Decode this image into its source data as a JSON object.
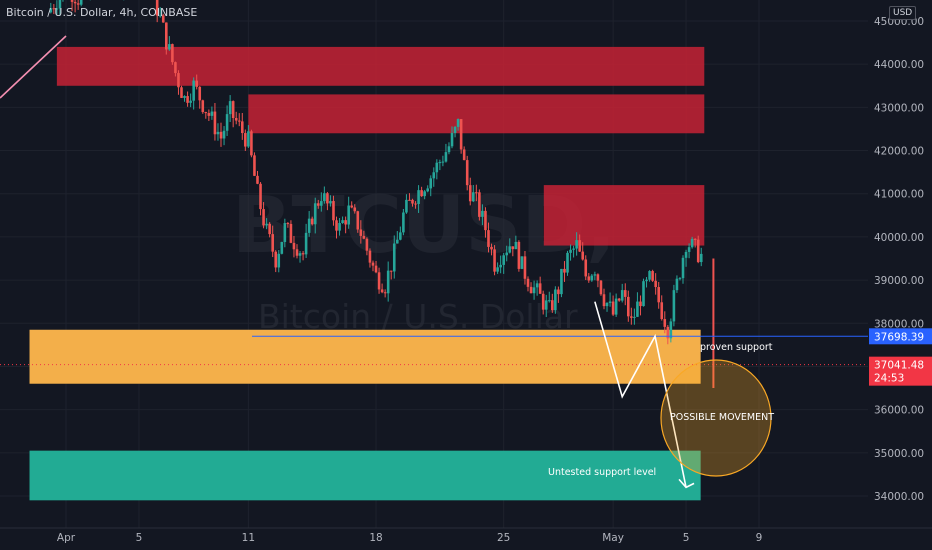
{
  "header": {
    "symbol_line": "Bitcoin / U.S. Dollar, 4h, COINBASE",
    "currency": "USD"
  },
  "watermark": {
    "ticker": "BTCUSD,",
    "name": "Bitcoin / U.S. Dollar"
  },
  "colors": {
    "background": "#131722",
    "up_candle": "#26a69a",
    "down_candle": "#ef5350",
    "resistance_zone": "#c62235",
    "support_zone": "#ffb74d",
    "untested_zone": "#22ab94",
    "blue_line": "#2962ff",
    "possible_circle": "#f9a825",
    "price_tag_red": "#f23645"
  },
  "chart_data": {
    "type": "candlestick",
    "title": "Bitcoin / U.S. Dollar, 4h, COINBASE",
    "yaxis": {
      "label": "USD",
      "range": [
        33300,
        45700
      ],
      "ticks": [
        "45000.00",
        "44000.00",
        "43000.00",
        "42000.00",
        "41000.00",
        "40000.00",
        "39000.00",
        "38000.00",
        "37000.00",
        "36000.00",
        "35000.00",
        "34000.00"
      ],
      "tick_values": [
        45000,
        44000,
        43000,
        42000,
        41000,
        40000,
        39000,
        38000,
        37000,
        36000,
        35000,
        34000
      ]
    },
    "xaxis": {
      "range_days": [
        0,
        47
      ],
      "ticks": [
        {
          "label": "Apr",
          "day": 1
        },
        {
          "label": "5",
          "day": 5
        },
        {
          "label": "11",
          "day": 11
        },
        {
          "label": "18",
          "day": 18
        },
        {
          "label": "25",
          "day": 25
        },
        {
          "label": "May",
          "day": 31
        },
        {
          "label": "5",
          "day": 35
        },
        {
          "label": "9",
          "day": 39
        }
      ]
    },
    "price_path": [
      [
        0,
        45200
      ],
      [
        1,
        45800
      ],
      [
        2,
        45400
      ],
      [
        3,
        46200
      ],
      [
        4,
        45800
      ],
      [
        5,
        46600
      ],
      [
        6,
        45300
      ],
      [
        7,
        43800
      ],
      [
        7.5,
        43200
      ],
      [
        8,
        43500
      ],
      [
        9,
        42700
      ],
      [
        9.5,
        42300
      ],
      [
        10,
        42900
      ],
      [
        11,
        42200
      ],
      [
        11.5,
        41000
      ],
      [
        12,
        40100
      ],
      [
        12.5,
        39500
      ],
      [
        13,
        40200
      ],
      [
        14,
        39600
      ],
      [
        14.5,
        40500
      ],
      [
        15,
        41000
      ],
      [
        16,
        40200
      ],
      [
        16.5,
        40600
      ],
      [
        17,
        40300
      ],
      [
        18,
        39100
      ],
      [
        18.5,
        38900
      ],
      [
        19,
        39600
      ],
      [
        19.5,
        40500
      ],
      [
        20,
        40900
      ],
      [
        21,
        41400
      ],
      [
        22,
        42100
      ],
      [
        22.5,
        42600
      ],
      [
        23,
        41200
      ],
      [
        23.5,
        40800
      ],
      [
        24,
        40200
      ],
      [
        24.5,
        39400
      ],
      [
        25,
        39700
      ],
      [
        25.5,
        39900
      ],
      [
        26,
        39300
      ],
      [
        26.5,
        38900
      ],
      [
        27,
        38600
      ],
      [
        27.5,
        38300
      ],
      [
        28,
        38800
      ],
      [
        28.5,
        39500
      ],
      [
        29,
        39800
      ],
      [
        29.5,
        39100
      ],
      [
        30,
        39300
      ],
      [
        30.5,
        38600
      ],
      [
        31,
        38200
      ],
      [
        31.5,
        38700
      ],
      [
        32,
        38000
      ],
      [
        32.5,
        38600
      ],
      [
        33,
        39000
      ],
      [
        33.5,
        38500
      ],
      [
        34,
        37900
      ],
      [
        34.5,
        38900
      ],
      [
        35,
        39900
      ],
      [
        35.5,
        39700
      ],
      [
        36,
        39500
      ]
    ],
    "current_candle_drop": [
      36,
      39500,
      36500
    ],
    "zones": [
      {
        "name": "resistance-1",
        "from_day": 0.5,
        "to_day": 36,
        "low": 43500,
        "high": 44400
      },
      {
        "name": "resistance-2",
        "from_day": 11,
        "to_day": 36,
        "low": 42400,
        "high": 43300
      },
      {
        "name": "resistance-3",
        "from_day": 27.2,
        "to_day": 36,
        "low": 39800,
        "high": 41200
      },
      {
        "name": "proven-support",
        "from_day": -1,
        "to_day": 35.8,
        "low": 36600,
        "high": 37850
      },
      {
        "name": "untested-support",
        "from_day": -1,
        "to_day": 35.8,
        "low": 33900,
        "high": 35050
      }
    ],
    "projection_path": [
      [
        30,
        38500
      ],
      [
        31.5,
        36300
      ],
      [
        33.3,
        37700
      ],
      [
        35,
        34200
      ]
    ],
    "support_line_price": 37698.39,
    "current_price": 37041.48,
    "countdown": "24:53",
    "annotations": {
      "proven_support": "proven support",
      "possible_movement": "POSSIBLE MOVEMENT",
      "untested_support": "Untested support level"
    },
    "price_labels": {
      "support_line": "37698.39",
      "current": "37041.48"
    }
  }
}
